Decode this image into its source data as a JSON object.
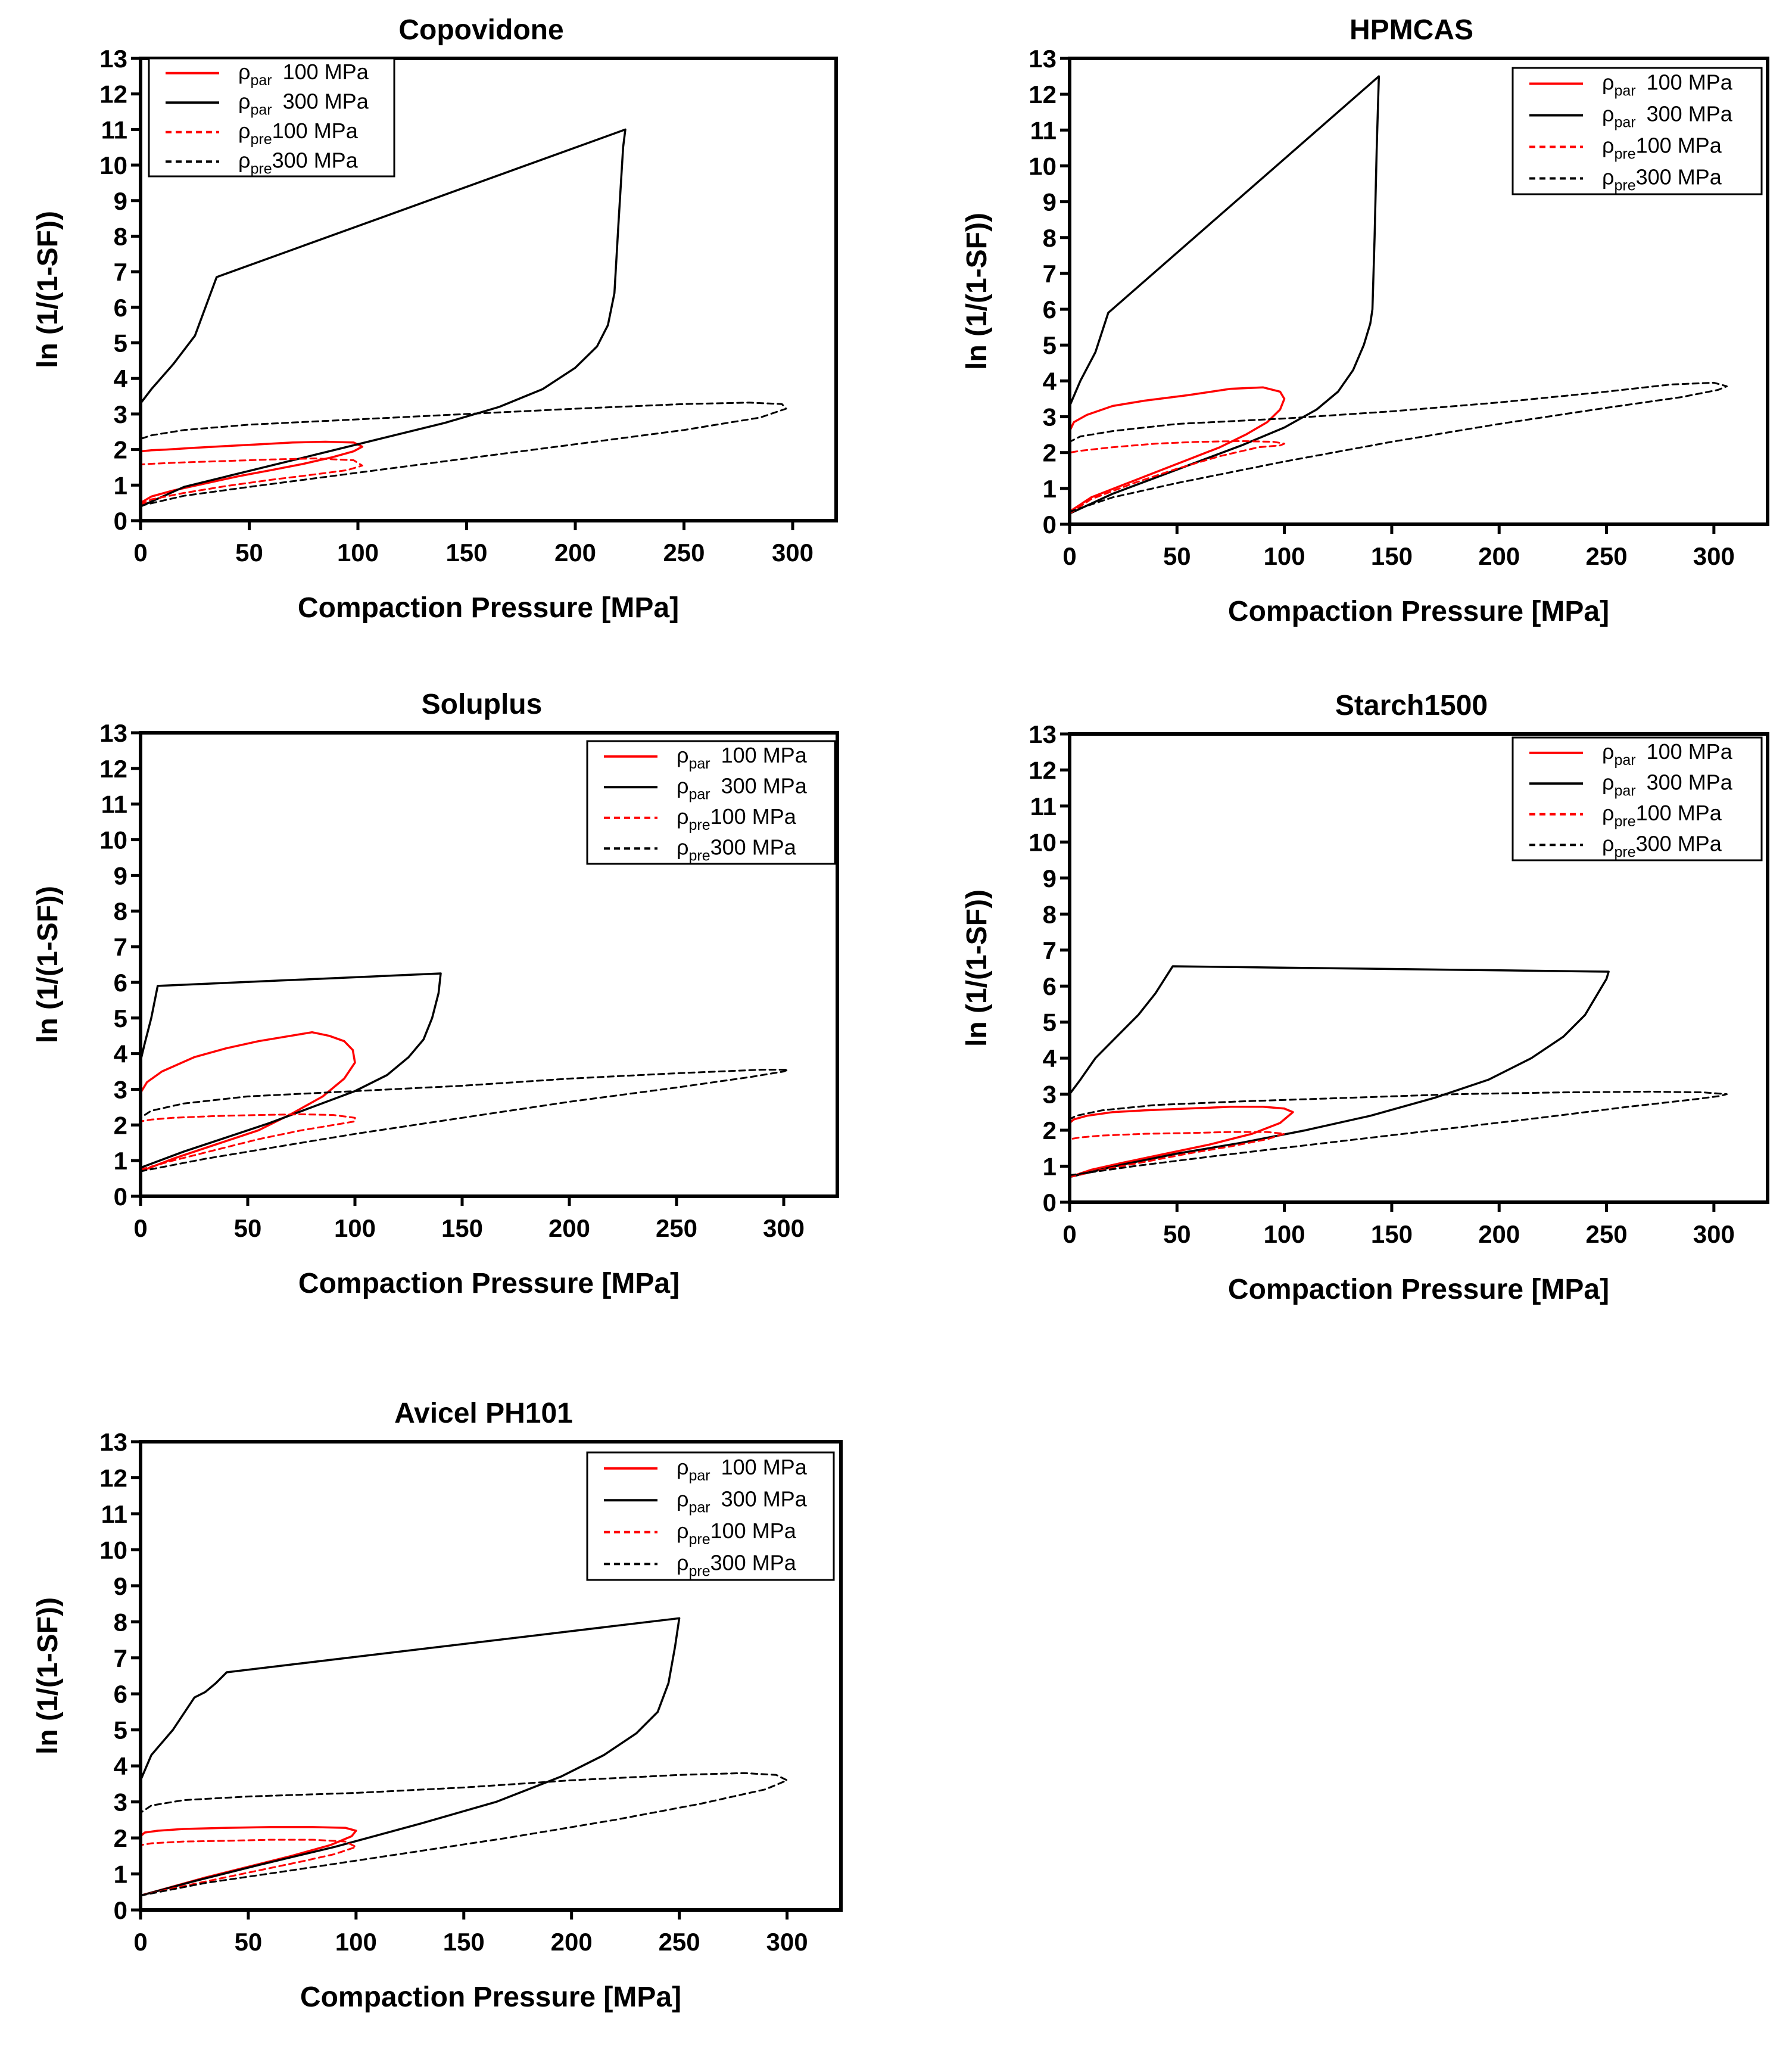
{
  "colors": {
    "p100": "#ff0000",
    "p300": "#000000"
  },
  "shared": {
    "xlabel": "Compaction Pressure [MPa]",
    "ylabel": "ln (1/(1-SF))",
    "xticks": [
      "0",
      "50",
      "100",
      "150",
      "200",
      "250",
      "300"
    ],
    "yticks": [
      "0",
      "1",
      "2",
      "3",
      "4",
      "5",
      "6",
      "7",
      "8",
      "9",
      "10",
      "11",
      "12",
      "13"
    ],
    "legend": [
      {
        "symbol": "ρ",
        "sub": "par",
        "text": "100 MPa"
      },
      {
        "symbol": "ρ",
        "sub": "par",
        "text": "300 MPa"
      },
      {
        "symbol": "ρ",
        "sub": "pre",
        "text": "100 MPa"
      },
      {
        "symbol": "ρ",
        "sub": "pre",
        "text": "300 MPa"
      }
    ]
  },
  "chart_data": [
    {
      "type": "line",
      "title": "Copovidone",
      "xlabel": "Compaction Pressure [MPa]",
      "ylabel": "ln (1/(1-SF))",
      "xlim": [
        0,
        320
      ],
      "ylim": [
        0,
        13
      ],
      "legend_position": "top-left",
      "series": [
        {
          "name": "ρpar 100 MPa",
          "color": "#ff0000",
          "dash": false,
          "x": [
            0,
            5,
            15,
            30,
            45,
            60,
            75,
            88,
            98,
            102,
            98,
            85,
            70,
            55,
            40,
            25,
            12,
            5,
            0
          ],
          "y": [
            0.5,
            0.68,
            0.85,
            1.05,
            1.25,
            1.42,
            1.6,
            1.78,
            1.95,
            2.08,
            2.2,
            2.22,
            2.2,
            2.15,
            2.1,
            2.05,
            2.0,
            1.98,
            1.95
          ]
        },
        {
          "name": "ρpar 300 MPa",
          "color": "#000000",
          "dash": false,
          "x": [
            0,
            20,
            50,
            80,
            110,
            140,
            165,
            185,
            200,
            210,
            215,
            218,
            220,
            222,
            223,
            35,
            25,
            15,
            5,
            0
          ],
          "y": [
            0.4,
            0.95,
            1.4,
            1.85,
            2.3,
            2.75,
            3.2,
            3.7,
            4.3,
            4.9,
            5.5,
            6.4,
            8.5,
            10.5,
            11.0,
            6.85,
            5.2,
            4.4,
            3.7,
            3.3
          ]
        },
        {
          "name": "ρpre 100 MPa",
          "color": "#ff0000",
          "dash": true,
          "x": [
            0,
            5,
            20,
            40,
            60,
            80,
            95,
            102,
            98,
            80,
            60,
            40,
            20,
            5,
            0
          ],
          "y": [
            0.45,
            0.6,
            0.78,
            0.98,
            1.15,
            1.3,
            1.42,
            1.55,
            1.7,
            1.75,
            1.72,
            1.68,
            1.64,
            1.6,
            1.58
          ]
        },
        {
          "name": "ρpre 300 MPa",
          "color": "#000000",
          "dash": true,
          "x": [
            0,
            20,
            50,
            100,
            150,
            200,
            250,
            285,
            297,
            295,
            280,
            250,
            200,
            150,
            100,
            50,
            20,
            5,
            0
          ],
          "y": [
            0.42,
            0.7,
            0.95,
            1.35,
            1.75,
            2.15,
            2.55,
            2.9,
            3.15,
            3.28,
            3.32,
            3.28,
            3.15,
            3.0,
            2.85,
            2.7,
            2.55,
            2.4,
            2.3
          ]
        }
      ]
    },
    {
      "type": "line",
      "title": "HPMCAS",
      "xlabel": "Compaction Pressure [MPa]",
      "ylabel": "ln (1/(1-SF))",
      "xlim": [
        0,
        325
      ],
      "ylim": [
        0,
        13
      ],
      "legend_position": "top-right",
      "series": [
        {
          "name": "ρpar 100 MPa",
          "color": "#ff0000",
          "dash": false,
          "x": [
            0,
            10,
            25,
            40,
            55,
            70,
            82,
            92,
            98,
            100,
            98,
            90,
            75,
            55,
            35,
            20,
            8,
            2,
            0
          ],
          "y": [
            0.35,
            0.75,
            1.1,
            1.45,
            1.8,
            2.15,
            2.5,
            2.85,
            3.2,
            3.5,
            3.7,
            3.82,
            3.78,
            3.6,
            3.45,
            3.3,
            3.05,
            2.85,
            2.6
          ]
        },
        {
          "name": "ρpar 300 MPa",
          "color": "#000000",
          "dash": false,
          "x": [
            0,
            20,
            40,
            60,
            80,
            100,
            115,
            125,
            132,
            137,
            140,
            141,
            142,
            143,
            144,
            18,
            12,
            5,
            0
          ],
          "y": [
            0.3,
            0.85,
            1.3,
            1.75,
            2.2,
            2.7,
            3.2,
            3.7,
            4.3,
            5.0,
            5.6,
            6.0,
            8.0,
            10.5,
            12.5,
            5.9,
            4.8,
            4.0,
            3.3
          ]
        },
        {
          "name": "ρpre 100 MPa",
          "color": "#ff0000",
          "dash": true,
          "x": [
            0,
            10,
            30,
            50,
            70,
            88,
            98,
            100,
            95,
            80,
            60,
            40,
            20,
            5,
            0
          ],
          "y": [
            0.3,
            0.7,
            1.15,
            1.55,
            1.9,
            2.15,
            2.2,
            2.25,
            2.3,
            2.32,
            2.3,
            2.25,
            2.15,
            2.05,
            2.0
          ]
        },
        {
          "name": "ρpre 300 MPa",
          "color": "#000000",
          "dash": true,
          "x": [
            0,
            20,
            50,
            100,
            150,
            200,
            250,
            285,
            302,
            306,
            300,
            280,
            250,
            200,
            150,
            100,
            50,
            20,
            5,
            0
          ],
          "y": [
            0.35,
            0.75,
            1.15,
            1.75,
            2.3,
            2.8,
            3.25,
            3.55,
            3.75,
            3.85,
            3.95,
            3.9,
            3.7,
            3.4,
            3.15,
            2.95,
            2.8,
            2.6,
            2.45,
            2.3
          ]
        }
      ]
    },
    {
      "type": "line",
      "title": "Soluplus",
      "xlabel": "Compaction Pressure [MPa]",
      "ylabel": "ln (1/(1-SF))",
      "xlim": [
        0,
        325
      ],
      "ylim": [
        0,
        13
      ],
      "legend_position": "top-right",
      "series": [
        {
          "name": "ρpar 100 MPa",
          "color": "#ff0000",
          "dash": false,
          "x": [
            0,
            15,
            35,
            55,
            70,
            85,
            95,
            100,
            99,
            95,
            88,
            80,
            70,
            55,
            40,
            25,
            10,
            3,
            0
          ],
          "y": [
            0.7,
            1.05,
            1.45,
            1.85,
            2.3,
            2.8,
            3.3,
            3.75,
            4.1,
            4.35,
            4.5,
            4.6,
            4.5,
            4.35,
            4.15,
            3.9,
            3.5,
            3.2,
            2.9
          ]
        },
        {
          "name": "ρpar 300 MPa",
          "color": "#000000",
          "dash": false,
          "x": [
            0,
            20,
            40,
            60,
            80,
            100,
            115,
            125,
            132,
            136,
            139,
            140,
            8,
            5,
            2,
            0
          ],
          "y": [
            0.8,
            1.25,
            1.65,
            2.05,
            2.5,
            2.95,
            3.4,
            3.9,
            4.4,
            5.0,
            5.7,
            6.25,
            5.9,
            5.0,
            4.3,
            3.8
          ]
        },
        {
          "name": "ρpre 100 MPa",
          "color": "#ff0000",
          "dash": true,
          "x": [
            0,
            15,
            35,
            55,
            75,
            90,
            100,
            100,
            90,
            75,
            55,
            35,
            15,
            5,
            0
          ],
          "y": [
            0.75,
            1.0,
            1.3,
            1.6,
            1.85,
            2.0,
            2.1,
            2.2,
            2.28,
            2.3,
            2.28,
            2.25,
            2.2,
            2.15,
            2.1
          ]
        },
        {
          "name": "ρpre 300 MPa",
          "color": "#000000",
          "dash": true,
          "x": [
            0,
            30,
            60,
            100,
            150,
            200,
            250,
            285,
            300,
            302,
            290,
            250,
            200,
            150,
            100,
            50,
            20,
            5,
            0
          ],
          "y": [
            0.7,
            1.05,
            1.35,
            1.75,
            2.2,
            2.65,
            3.05,
            3.35,
            3.5,
            3.55,
            3.55,
            3.45,
            3.3,
            3.1,
            2.95,
            2.8,
            2.6,
            2.4,
            2.2
          ]
        }
      ]
    },
    {
      "type": "line",
      "title": "Starch1500",
      "xlabel": "Compaction Pressure [MPa]",
      "ylabel": "ln (1/(1-SF))",
      "xlim": [
        0,
        325
      ],
      "ylim": [
        0,
        13
      ],
      "legend_position": "top-right",
      "series": [
        {
          "name": "ρpar 100 MPa",
          "color": "#ff0000",
          "dash": false,
          "x": [
            0,
            10,
            25,
            45,
            65,
            85,
            98,
            104,
            100,
            90,
            75,
            55,
            35,
            20,
            8,
            2,
            0
          ],
          "y": [
            0.7,
            0.9,
            1.1,
            1.35,
            1.6,
            1.9,
            2.2,
            2.5,
            2.6,
            2.65,
            2.65,
            2.6,
            2.55,
            2.5,
            2.4,
            2.3,
            2.2
          ]
        },
        {
          "name": "ρpar 300 MPa",
          "color": "#000000",
          "dash": false,
          "x": [
            0,
            25,
            50,
            80,
            110,
            140,
            170,
            195,
            215,
            230,
            240,
            246,
            250,
            251,
            48,
            40,
            32,
            22,
            12,
            5,
            0
          ],
          "y": [
            0.7,
            1.05,
            1.35,
            1.65,
            2.0,
            2.4,
            2.9,
            3.4,
            4.0,
            4.6,
            5.2,
            5.8,
            6.2,
            6.4,
            6.55,
            5.8,
            5.2,
            4.6,
            4.0,
            3.4,
            3.0
          ]
        },
        {
          "name": "ρpre 100 MPa",
          "color": "#ff0000",
          "dash": true,
          "x": [
            0,
            15,
            35,
            55,
            75,
            92,
            100,
            92,
            75,
            55,
            35,
            15,
            5,
            0
          ],
          "y": [
            0.7,
            0.9,
            1.12,
            1.35,
            1.55,
            1.75,
            1.9,
            1.95,
            1.95,
            1.92,
            1.9,
            1.85,
            1.8,
            1.75
          ]
        },
        {
          "name": "ρpre 300 MPa",
          "color": "#000000",
          "dash": true,
          "x": [
            0,
            30,
            70,
            120,
            170,
            220,
            260,
            290,
            303,
            306,
            295,
            270,
            230,
            180,
            130,
            80,
            40,
            15,
            3,
            0
          ],
          "y": [
            0.75,
            1.0,
            1.3,
            1.65,
            2.0,
            2.35,
            2.65,
            2.85,
            2.95,
            3.0,
            3.05,
            3.07,
            3.05,
            3.0,
            2.9,
            2.8,
            2.7,
            2.55,
            2.4,
            2.3
          ]
        }
      ]
    },
    {
      "type": "line",
      "title": "Avicel PH101",
      "xlabel": "Compaction Pressure [MPa]",
      "ylabel": "ln (1/(1-SF))",
      "xlim": [
        0,
        325
      ],
      "ylim": [
        0,
        13
      ],
      "legend_position": "top-right",
      "series": [
        {
          "name": "ρpar 100 MPa",
          "color": "#ff0000",
          "dash": false,
          "x": [
            0,
            15,
            30,
            50,
            70,
            88,
            98,
            100,
            95,
            80,
            60,
            40,
            20,
            8,
            2,
            0
          ],
          "y": [
            0.4,
            0.65,
            0.9,
            1.2,
            1.5,
            1.8,
            2.05,
            2.2,
            2.28,
            2.3,
            2.3,
            2.28,
            2.25,
            2.2,
            2.15,
            2.05
          ]
        },
        {
          "name": "ρpar 300 MPa",
          "color": "#000000",
          "dash": false,
          "x": [
            0,
            25,
            55,
            90,
            130,
            165,
            195,
            215,
            230,
            240,
            245,
            248,
            250,
            40,
            35,
            30,
            25,
            15,
            5,
            0
          ],
          "y": [
            0.4,
            0.8,
            1.25,
            1.75,
            2.4,
            3.0,
            3.7,
            4.3,
            4.9,
            5.5,
            6.3,
            7.3,
            8.1,
            6.6,
            6.3,
            6.05,
            5.9,
            5.0,
            4.3,
            3.6
          ]
        },
        {
          "name": "ρpre 100 MPa",
          "color": "#ff0000",
          "dash": true,
          "x": [
            0,
            15,
            35,
            55,
            75,
            90,
            100,
            95,
            80,
            60,
            40,
            20,
            5,
            0
          ],
          "y": [
            0.4,
            0.6,
            0.85,
            1.1,
            1.35,
            1.55,
            1.75,
            1.9,
            1.95,
            1.95,
            1.92,
            1.9,
            1.85,
            1.8
          ]
        },
        {
          "name": "ρpre 300 MPa",
          "color": "#000000",
          "dash": true,
          "x": [
            0,
            30,
            70,
            120,
            170,
            220,
            260,
            290,
            300,
            295,
            280,
            250,
            200,
            150,
            100,
            50,
            20,
            5,
            0
          ],
          "y": [
            0.4,
            0.75,
            1.1,
            1.55,
            2.0,
            2.5,
            2.95,
            3.35,
            3.6,
            3.75,
            3.8,
            3.75,
            3.6,
            3.4,
            3.25,
            3.15,
            3.05,
            2.9,
            2.7
          ]
        }
      ]
    }
  ]
}
